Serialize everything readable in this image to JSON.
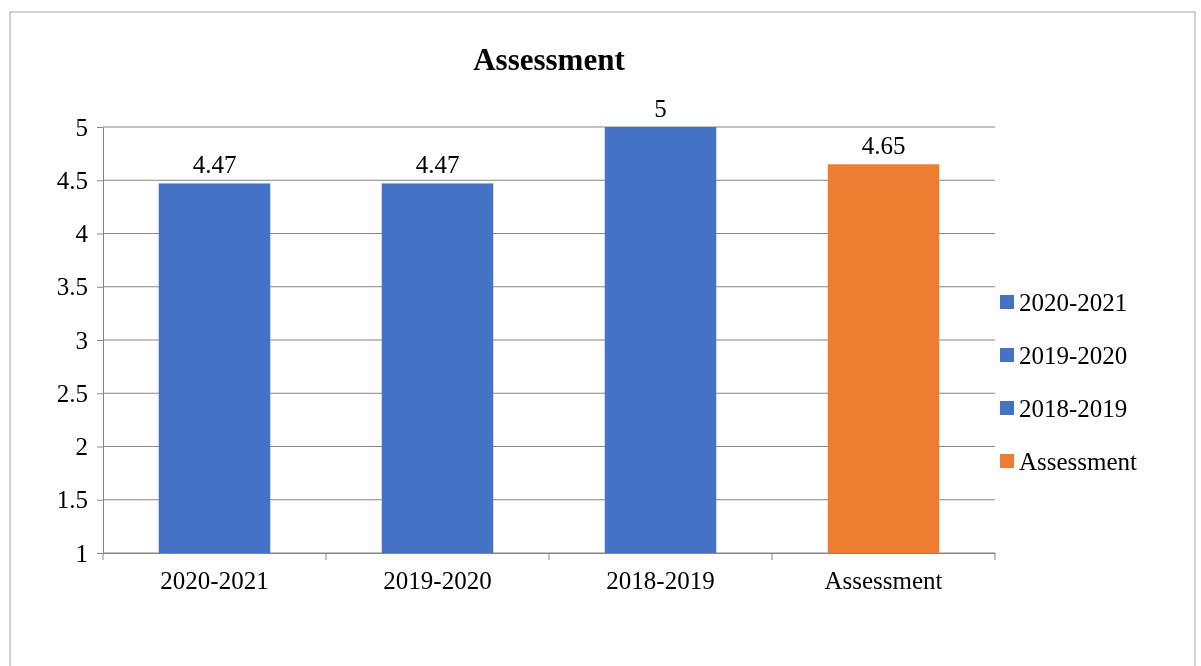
{
  "chart_data": {
    "type": "bar",
    "title": "Assessment",
    "categories": [
      "2020-2021",
      "2019-2020",
      "2018-2019",
      "Assessment"
    ],
    "series": [
      {
        "name": "2020-2021",
        "color": "#4472c4",
        "values": [
          4.47,
          null,
          null,
          null
        ]
      },
      {
        "name": "2019-2020",
        "color": "#4472c4",
        "values": [
          null,
          4.47,
          null,
          null
        ]
      },
      {
        "name": "2018-2019",
        "color": "#4472c4",
        "values": [
          null,
          null,
          5,
          null
        ]
      },
      {
        "name": "Assessment",
        "color": "#ed7d31",
        "values": [
          null,
          null,
          null,
          4.65
        ]
      }
    ],
    "ylim": [
      1,
      5
    ],
    "yticks": [
      1,
      1.5,
      2,
      2.5,
      3,
      3.5,
      4,
      4.5,
      5
    ],
    "grid": "y",
    "legend": "right",
    "data_labels": true
  }
}
